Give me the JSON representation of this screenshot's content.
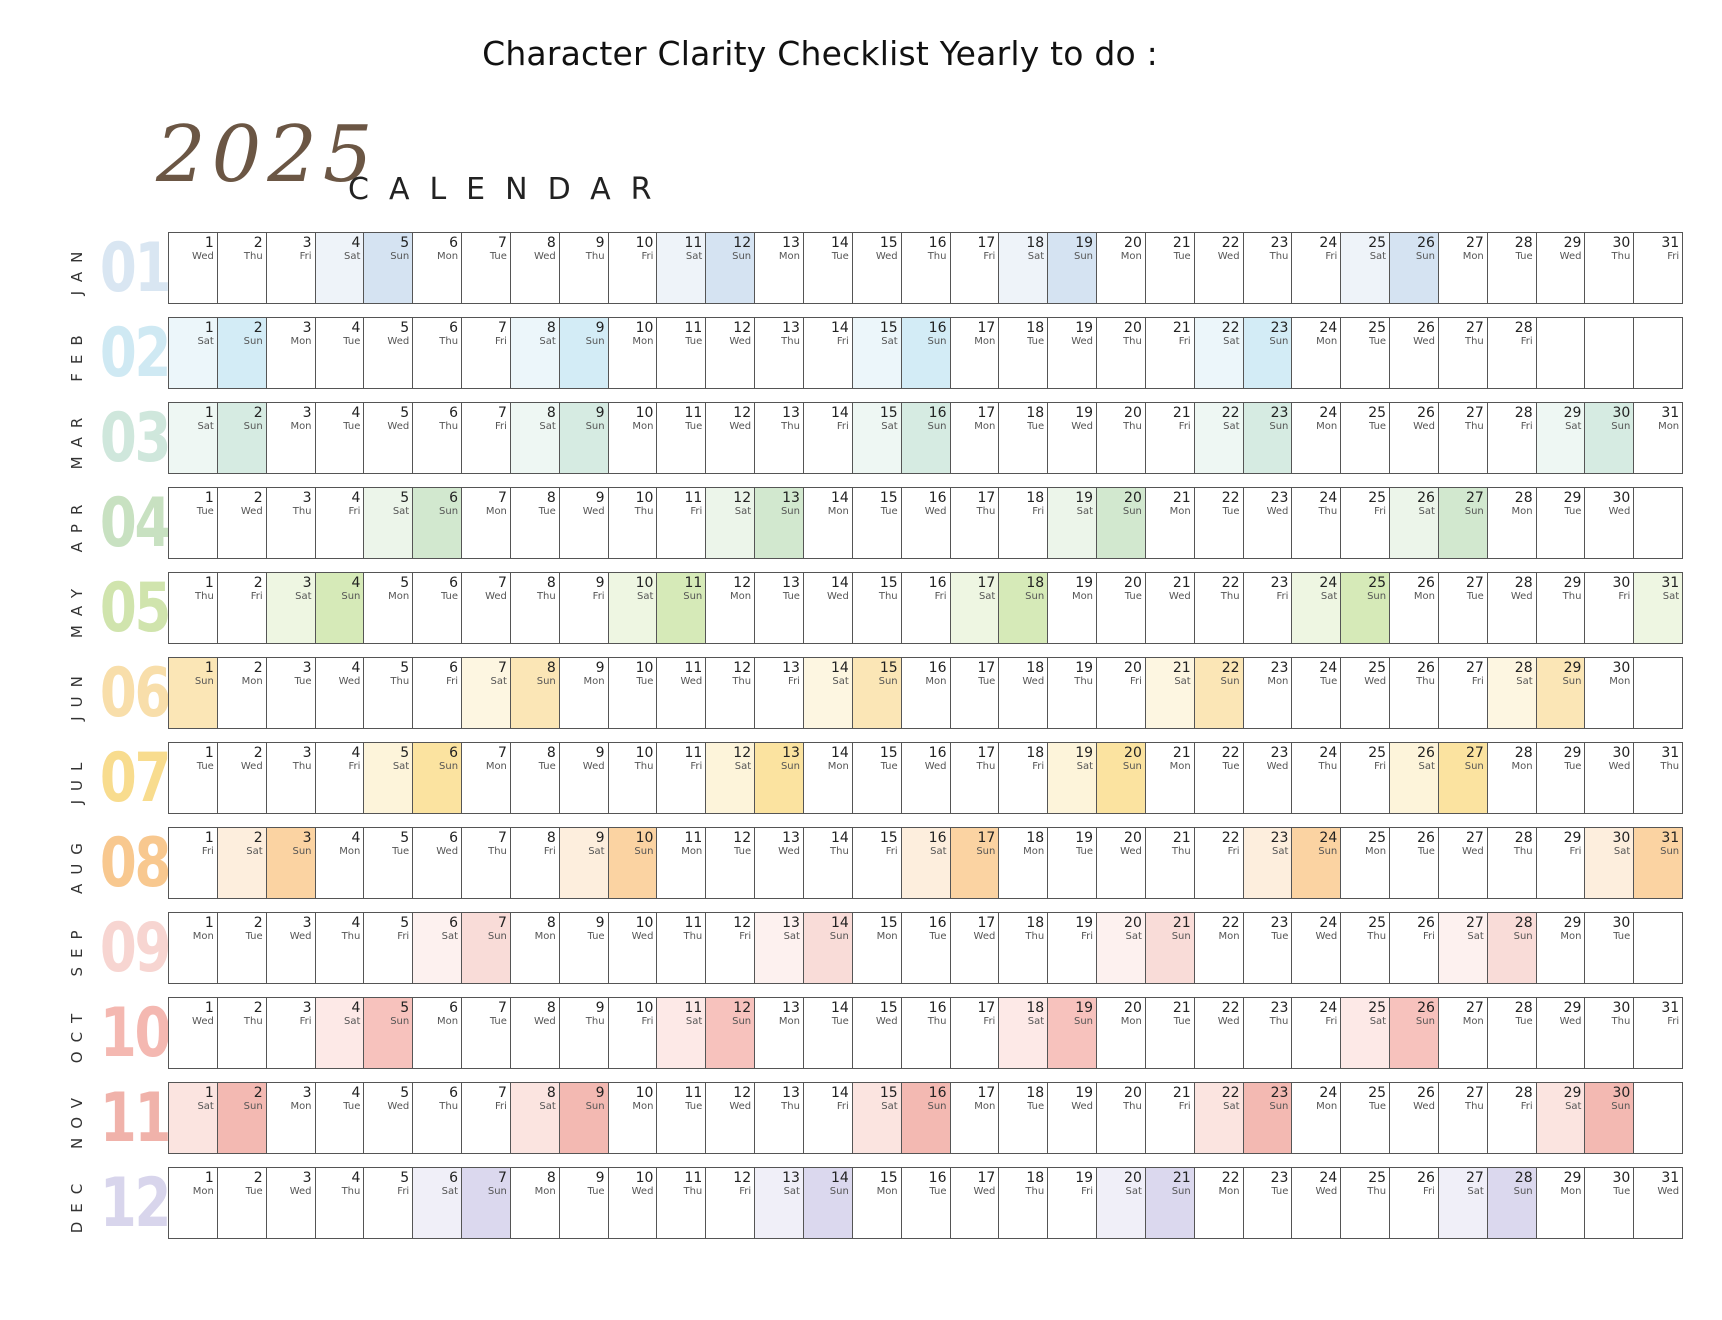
{
  "title": "Character Clarity Checklist Yearly to do :",
  "year": "2025",
  "calendar_label": "CALENDAR",
  "months": [
    {
      "name": "JAN",
      "num": "01",
      "first_day": 3,
      "days": 31,
      "color": "#dbe7f3",
      "sat_color": "#eef3f9",
      "sun_color": "#d5e3f2"
    },
    {
      "name": "FEB",
      "num": "02",
      "first_day": 6,
      "days": 28,
      "color": "#d3edf6",
      "sat_color": "#ecf6fa",
      "sun_color": "#d3ecf6"
    },
    {
      "name": "MAR",
      "num": "03",
      "first_day": 6,
      "days": 31,
      "color": "#d4ebe2",
      "sat_color": "#eef7f3",
      "sun_color": "#d6ebe2"
    },
    {
      "name": "APR",
      "num": "04",
      "first_day": 2,
      "days": 30,
      "color": "#cfe6cb",
      "sat_color": "#ecf5ea",
      "sun_color": "#d2e8cf"
    },
    {
      "name": "MAY",
      "num": "05",
      "first_day": 4,
      "days": 31,
      "color": "#d6e9bd",
      "sat_color": "#eef6e2",
      "sun_color": "#d6eab8"
    },
    {
      "name": "JUN",
      "num": "06",
      "first_day": 0,
      "days": 30,
      "color": "#fbe5b8",
      "sat_color": "#fdf6e1",
      "sun_color": "#fbe6b6"
    },
    {
      "name": "JUL",
      "num": "07",
      "first_day": 2,
      "days": 31,
      "color": "#fbe3a3",
      "sat_color": "#fdf4da",
      "sun_color": "#fbe3a0"
    },
    {
      "name": "AUG",
      "num": "08",
      "first_day": 5,
      "days": 31,
      "color": "#fbd2a4",
      "sat_color": "#fdeedd",
      "sun_color": "#fbd3a2"
    },
    {
      "name": "SEP",
      "num": "09",
      "first_day": 1,
      "days": 30,
      "color": "#f9dcd8",
      "sat_color": "#fdf1ef",
      "sun_color": "#f9dcd8"
    },
    {
      "name": "OCT",
      "num": "10",
      "first_day": 3,
      "days": 31,
      "color": "#f7c4bf",
      "sat_color": "#fde9e7",
      "sun_color": "#f7c2bd"
    },
    {
      "name": "NOV",
      "num": "11",
      "first_day": 6,
      "days": 30,
      "color": "#f3bcb5",
      "sat_color": "#fbe4e0",
      "sun_color": "#f3b9b2"
    },
    {
      "name": "DEC",
      "num": "12",
      "first_day": 1,
      "days": 31,
      "color": "#dcd9ef",
      "sat_color": "#f0eff8",
      "sun_color": "#dbd8ee"
    }
  ],
  "weekday_abbrev": [
    "Sun",
    "Mon",
    "Tue",
    "Wed",
    "Thu",
    "Fri",
    "Sat"
  ],
  "num_colors": [
    "#d9e6f2",
    "#cfe9f3",
    "#cfe7dc",
    "#c8e1c1",
    "#d0e4ad",
    "#f8deaa",
    "#f8dc8e",
    "#f8c88f",
    "#f7d5d1",
    "#f4b8b1",
    "#f0b2aa",
    "#d8d5ec"
  ]
}
